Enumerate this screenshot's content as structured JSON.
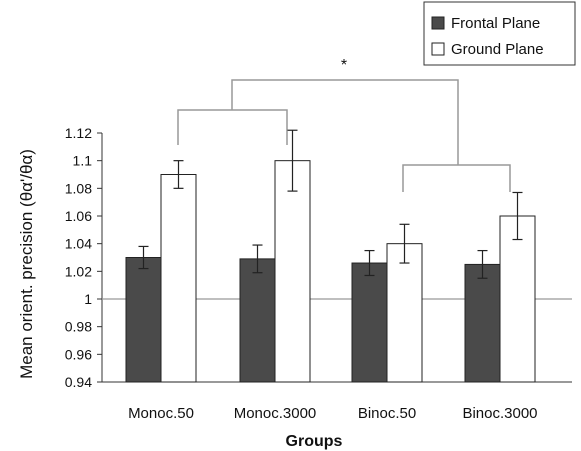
{
  "chart_data": {
    "type": "bar",
    "categories": [
      "Monoc.50",
      "Monoc.3000",
      "Binoc.50",
      "Binoc.3000"
    ],
    "series": [
      {
        "name": "Frontal Plane",
        "values": [
          1.03,
          1.029,
          1.026,
          1.025
        ],
        "errors": [
          0.008,
          0.01,
          0.009,
          0.01
        ],
        "color": "#4a4a4a"
      },
      {
        "name": "Ground Plane",
        "values": [
          1.09,
          1.1,
          1.04,
          1.06
        ],
        "errors": [
          0.01,
          0.022,
          0.014,
          0.017
        ],
        "color": "#ffffff"
      }
    ],
    "xlabel": "Groups",
    "ylabel": "Mean orient. precision (θα'/θα)",
    "ylim": [
      0.94,
      1.12
    ],
    "yticks": [
      "0.94",
      "0.96",
      "0.98",
      "1",
      "1.02",
      "1.04",
      "1.06",
      "1.08",
      "1.1",
      "1.12"
    ],
    "reference_line": 1,
    "legend_position": "top-right",
    "significance": {
      "label": "*",
      "compare": [
        [
          "Monoc.50",
          "Monoc.3000"
        ],
        [
          "Binoc.50",
          "Binoc.3000"
        ]
      ]
    }
  }
}
